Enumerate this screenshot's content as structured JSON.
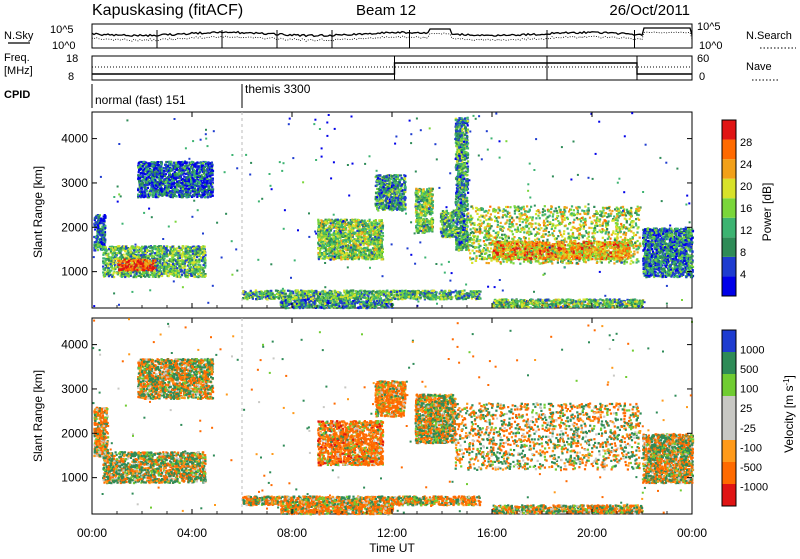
{
  "header": {
    "station": "Kapuskasing (fitACF)",
    "beam": "Beam 12",
    "date": "26/Oct/2011"
  },
  "labels": {
    "nsky": "N.Sky",
    "nsearch": "N.Search",
    "freq_line1": "Freq.",
    "freq_line2": "[MHz]",
    "nave": "Nave",
    "cpid": "CPID",
    "x_axis": "Time UT",
    "y_axis": "Slant Range [km]",
    "power_bar": "Power [dB]",
    "velocity_bar": "Velocity [m s",
    "velocity_exp": "-1",
    "velocity_close": "]"
  },
  "noise_axis": {
    "left": [
      "10^5",
      "10^0"
    ],
    "right": [
      "10^5",
      "10^0"
    ]
  },
  "freq_axis": {
    "left": [
      "18",
      "8"
    ],
    "right": [
      "60",
      "0"
    ]
  },
  "cpid_segments": [
    {
      "label": "normal (fast) 151",
      "start": 0,
      "end": 6
    },
    {
      "label": "themis 3300",
      "start": 6,
      "end": 24
    }
  ],
  "colors": {
    "power": [
      "#0000e8",
      "#1e3cd0",
      "#2e8b57",
      "#3cb371",
      "#7ad63a",
      "#d8e22a",
      "#f2a019",
      "#ff6a00",
      "#e01414"
    ],
    "velocity": [
      "#e01414",
      "#ff6a00",
      "#ff9a1a",
      "#c8c8c4",
      "#c8c8c4",
      "#70cc32",
      "#2e8b57",
      "#1e3cd0"
    ]
  },
  "colorbars": {
    "power_ticks": [
      "28",
      "24",
      "20",
      "16",
      "12",
      "8",
      "4"
    ],
    "velocity_ticks": [
      "1000",
      "500",
      "100",
      "25",
      "-25",
      "-100",
      "-500",
      "-1000"
    ]
  },
  "chart_data": {
    "type": "heatmap",
    "x": {
      "label": "Time UT",
      "range": [
        0,
        24
      ],
      "unit": "hour",
      "ticks": [
        "00:00",
        "04:00",
        "08:00",
        "12:00",
        "16:00",
        "20:00",
        "00:00"
      ]
    },
    "y": {
      "label": "Slant Range [km]",
      "range": [
        180,
        4600
      ],
      "unit": "km",
      "ticks": [
        "1000",
        "2000",
        "3000",
        "4000"
      ]
    },
    "panels": [
      {
        "name": "Power [dB]",
        "color_range": [
          0,
          30
        ],
        "blobs": [
          {
            "t": [
              0.05,
              0.5
            ],
            "r": [
              1500,
              2300
            ],
            "level": 7
          },
          {
            "t": [
              0.4,
              4.5
            ],
            "r": [
              900,
              1600
            ],
            "level": 12
          },
          {
            "t": [
              1.0,
              2.5
            ],
            "r": [
              1050,
              1300
            ],
            "level": 26
          },
          {
            "t": [
              1.8,
              4.8
            ],
            "r": [
              2700,
              3500
            ],
            "level": 6
          },
          {
            "t": [
              7.5,
              12.0
            ],
            "r": [
              200,
              400
            ],
            "level": 10
          },
          {
            "t": [
              9.0,
              11.6
            ],
            "r": [
              1300,
              2200
            ],
            "level": 14
          },
          {
            "t": [
              11.3,
              12.5
            ],
            "r": [
              2400,
              3200
            ],
            "level": 10
          },
          {
            "t": [
              12.9,
              13.6
            ],
            "r": [
              1900,
              2900
            ],
            "level": 14
          },
          {
            "t": [
              13.9,
              14.5
            ],
            "r": [
              1800,
              2400
            ],
            "level": 12
          },
          {
            "t": [
              14.5,
              15.0
            ],
            "r": [
              1500,
              4500
            ],
            "level": 10
          },
          {
            "t": [
              15.0,
              21.9
            ],
            "r": [
              1200,
              2500
            ],
            "level": 16
          },
          {
            "t": [
              16.0,
              21.5
            ],
            "r": [
              1300,
              1700
            ],
            "level": 21
          },
          {
            "t": [
              22.0,
              24.0
            ],
            "r": [
              900,
              2000
            ],
            "level": 8
          },
          {
            "t": [
              6.0,
              15.5
            ],
            "r": [
              400,
              600
            ],
            "level": 12
          },
          {
            "t": [
              16.0,
              22.0
            ],
            "r": [
              220,
              400
            ],
            "level": 13
          }
        ]
      },
      {
        "name": "Velocity [m s-1]",
        "color_range": [
          -1000,
          1000
        ],
        "blobs": [
          {
            "t": [
              0.05,
              0.6
            ],
            "r": [
              1500,
              2600
            ],
            "level": -100
          },
          {
            "t": [
              0.4,
              4.5
            ],
            "r": [
              900,
              1600
            ],
            "level": 80
          },
          {
            "t": [
              1.8,
              4.8
            ],
            "r": [
              2800,
              3700
            ],
            "level": 10
          },
          {
            "t": [
              7.5,
              12.0
            ],
            "r": [
              200,
              400
            ],
            "level": -150
          },
          {
            "t": [
              9.0,
              11.6
            ],
            "r": [
              1300,
              2300
            ],
            "level": -200
          },
          {
            "t": [
              11.3,
              12.5
            ],
            "r": [
              2400,
              3200
            ],
            "level": -150
          },
          {
            "t": [
              12.9,
              14.5
            ],
            "r": [
              1800,
              2900
            ],
            "level": 0
          },
          {
            "t": [
              14.5,
              21.9
            ],
            "r": [
              1200,
              2700
            ],
            "level": 0
          },
          {
            "t": [
              22.0,
              24.0
            ],
            "r": [
              900,
              2000
            ],
            "level": 0
          },
          {
            "t": [
              6.0,
              15.5
            ],
            "r": [
              400,
              600
            ],
            "level": -50
          },
          {
            "t": [
              16.0,
              22.0
            ],
            "r": [
              220,
              400
            ],
            "level": 0
          }
        ]
      }
    ]
  }
}
